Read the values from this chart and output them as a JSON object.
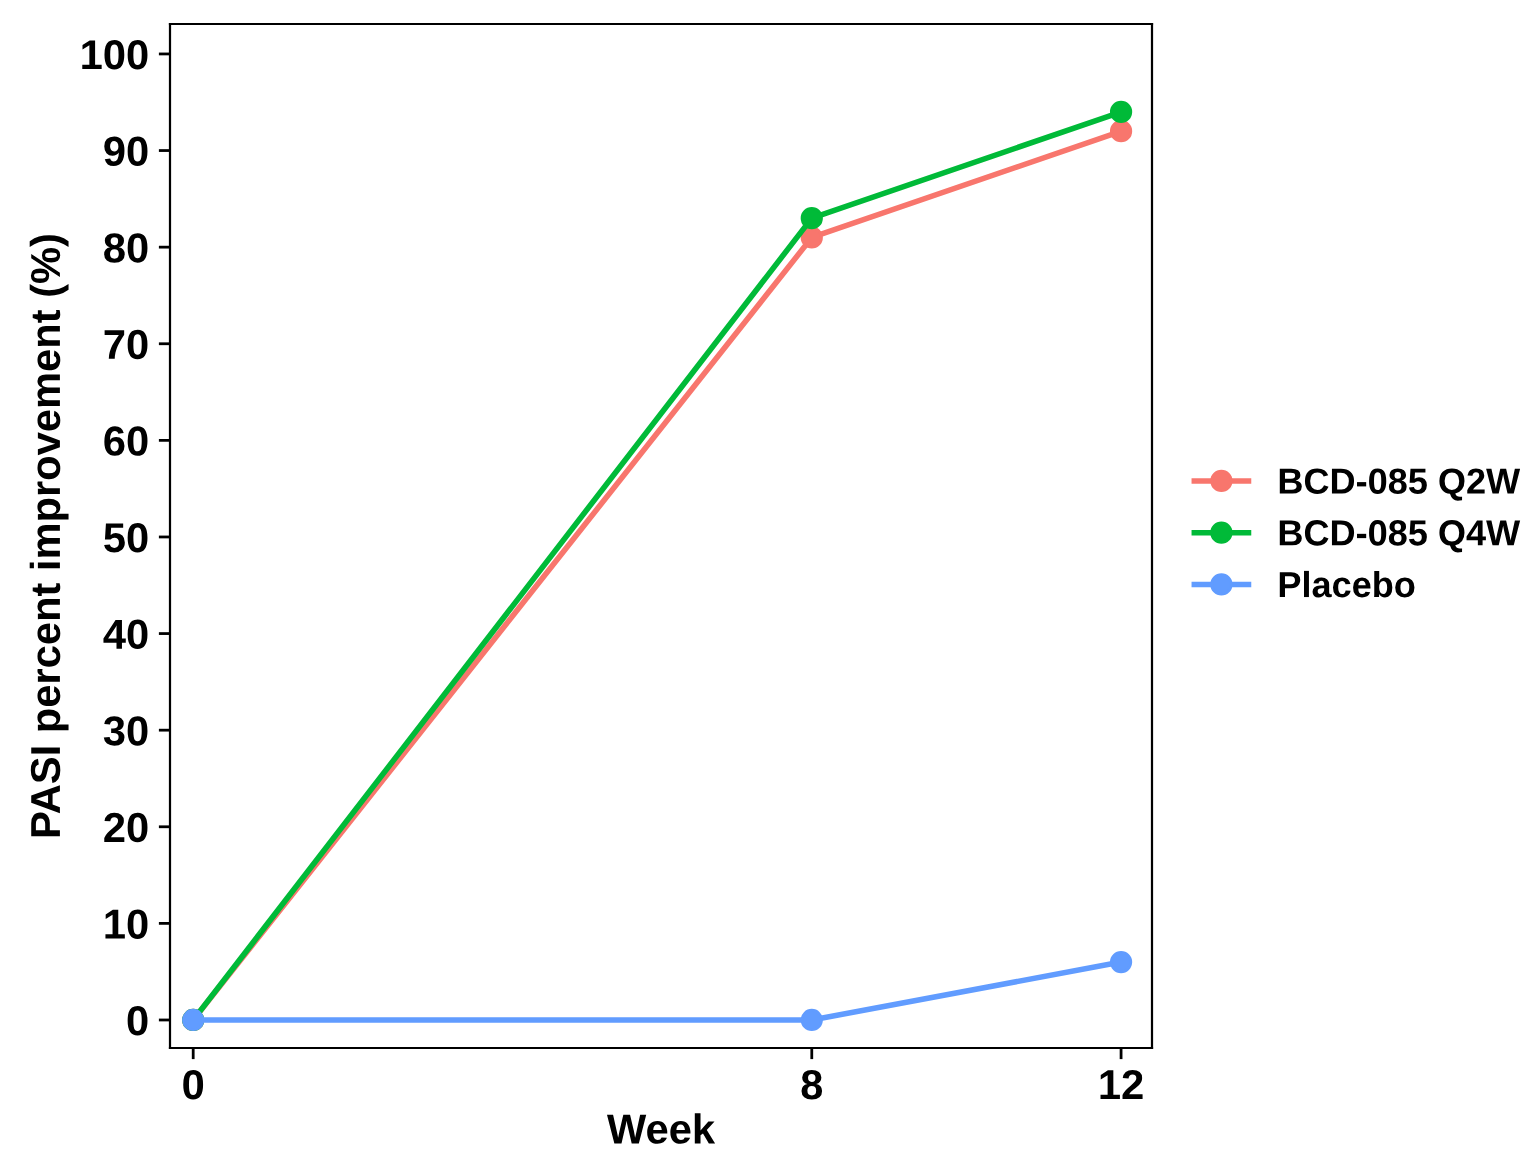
{
  "chart_data": {
    "type": "line",
    "xlabel": "Week",
    "ylabel": "PASI percent improvement (%)",
    "x": [
      0,
      8,
      12
    ],
    "series": [
      {
        "name": "BCD-085 Q2W",
        "color": "#f8766d",
        "values": [
          0,
          81,
          92
        ]
      },
      {
        "name": "BCD-085 Q4W",
        "color": "#00ba38",
        "values": [
          0,
          83,
          94
        ]
      },
      {
        "name": "Placebo",
        "color": "#619cff",
        "values": [
          0,
          0,
          6
        ]
      }
    ],
    "xlim": [
      -0.3,
      12.4
    ],
    "ylim": [
      -2.9,
      103.1
    ],
    "xticks": [
      0,
      8,
      12
    ],
    "yticks": [
      0,
      10,
      20,
      30,
      40,
      50,
      60,
      70,
      80,
      90,
      100
    ],
    "grid": false,
    "legend": "right",
    "marker": "circle",
    "line_style": "solid"
  }
}
